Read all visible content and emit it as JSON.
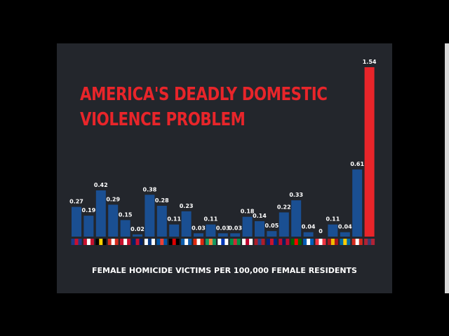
{
  "slide": {
    "title_line_1": "AMERICA'S DEADLY DOMESTIC",
    "title_line_2": "VIOLENCE PROBLEM",
    "footer": "FEMALE HOMICIDE VICTIMS PER 100,000 FEMALE RESIDENTS"
  },
  "colors": {
    "bar_default": "#1a4f92",
    "bar_highlight": "#e8252a",
    "title": "#e8252a",
    "background": "#23262c"
  },
  "chart_data": {
    "type": "bar",
    "title": "AMERICA'S DEADLY DOMESTIC VIOLENCE PROBLEM",
    "xlabel": "FEMALE HOMICIDE VICTIMS PER 100,000 FEMALE RESIDENTS",
    "ylabel": "",
    "ylim": [
      0,
      1.54
    ],
    "grid": false,
    "categories": [
      "australia-flag-icon",
      "austria-flag-icon",
      "belgium-flag-icon",
      "canada-flag-icon",
      "denmark-flag-icon",
      "uk-flag-icon",
      "finland-flag-icon",
      "france-flag-icon",
      "germany-flag-icon",
      "greece-flag-icon",
      "hong-kong-flag-icon",
      "ireland-flag-icon",
      "israel-flag-icon",
      "italy-flag-icon",
      "japan-flag-icon",
      "netherlands-flag-icon",
      "new-zealand-flag-icon",
      "norway-flag-icon",
      "portugal-flag-icon",
      "scotland-flag-icon",
      "singapore-flag-icon",
      "spain-flag-icon",
      "sweden-flag-icon",
      "switzerland-flag-icon",
      "usa-flag-icon"
    ],
    "values": [
      0.27,
      0.19,
      0.42,
      0.29,
      0.15,
      0.02,
      0.38,
      0.28,
      0.11,
      0.23,
      0.03,
      0.11,
      0.03,
      0.03,
      0.18,
      0.14,
      0.05,
      0.22,
      0.33,
      0.04,
      0,
      0.11,
      0.04,
      0.61,
      1.54
    ],
    "labels": [
      "0.27",
      "0.19",
      "0.42",
      "0.29",
      "0.15",
      "0.02",
      "0.38",
      "0.28",
      "0.11",
      "0.23",
      "0.03",
      "0.11",
      "0.03",
      "0.03",
      "0.18",
      "0.14",
      "0.05",
      "0.22",
      "0.33",
      "0.04",
      "0",
      "0.11",
      "0.04",
      "0.61",
      "1.54"
    ],
    "highlight_index": 24
  }
}
